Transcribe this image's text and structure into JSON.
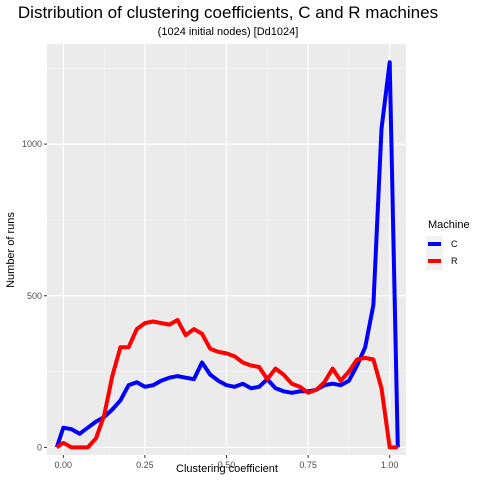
{
  "chart_data": {
    "type": "line",
    "title": "Distribution of clustering coefficients, C and R machines",
    "subtitle": "(1024 initial nodes) [Dd1024]",
    "xlabel": "Clustering coefficient",
    "ylabel": "Number of runs",
    "xlim": [
      -0.05,
      1.05
    ],
    "ylim": [
      -25,
      1330
    ],
    "x_ticks": [
      0.0,
      0.25,
      0.5,
      0.75,
      1.0
    ],
    "x_tick_labels": [
      "0.00",
      "0.25",
      "0.50",
      "0.75",
      "1.00"
    ],
    "y_ticks": [
      0,
      500,
      1000
    ],
    "y_tick_labels": [
      "0",
      "500",
      "1000"
    ],
    "grid": true,
    "background": "#ebebeb",
    "legend": {
      "title": "Machine",
      "position": "right",
      "entries": [
        {
          "label": "C",
          "color": "#0000ff"
        },
        {
          "label": "R",
          "color": "#ff0000"
        }
      ]
    },
    "series": [
      {
        "name": "C",
        "color": "#0000ff",
        "x": [
          -0.02,
          0.0,
          0.025,
          0.05,
          0.075,
          0.1,
          0.125,
          0.15,
          0.175,
          0.2,
          0.225,
          0.25,
          0.275,
          0.3,
          0.325,
          0.35,
          0.375,
          0.4,
          0.425,
          0.45,
          0.475,
          0.5,
          0.525,
          0.55,
          0.575,
          0.6,
          0.625,
          0.65,
          0.675,
          0.7,
          0.725,
          0.75,
          0.775,
          0.8,
          0.825,
          0.85,
          0.875,
          0.9,
          0.925,
          0.95,
          0.975,
          1.0,
          1.025
        ],
        "y": [
          0,
          65,
          60,
          45,
          65,
          85,
          100,
          125,
          155,
          205,
          215,
          200,
          205,
          220,
          230,
          235,
          230,
          225,
          280,
          240,
          220,
          205,
          200,
          210,
          195,
          200,
          225,
          195,
          185,
          180,
          185,
          185,
          190,
          205,
          210,
          205,
          220,
          270,
          330,
          470,
          1050,
          1270,
          0
        ]
      },
      {
        "name": "R",
        "color": "#ff0000",
        "x": [
          -0.02,
          0.0,
          0.025,
          0.05,
          0.075,
          0.1,
          0.125,
          0.15,
          0.175,
          0.2,
          0.225,
          0.25,
          0.275,
          0.3,
          0.325,
          0.35,
          0.375,
          0.4,
          0.425,
          0.45,
          0.475,
          0.5,
          0.525,
          0.55,
          0.575,
          0.6,
          0.625,
          0.65,
          0.675,
          0.7,
          0.725,
          0.75,
          0.775,
          0.8,
          0.825,
          0.85,
          0.875,
          0.9,
          0.925,
          0.95,
          0.975,
          1.0,
          1.025
        ],
        "y": [
          0,
          15,
          0,
          0,
          0,
          30,
          105,
          235,
          330,
          330,
          390,
          410,
          415,
          410,
          405,
          420,
          370,
          390,
          375,
          325,
          315,
          310,
          300,
          280,
          270,
          265,
          225,
          260,
          240,
          210,
          200,
          180,
          190,
          215,
          260,
          220,
          250,
          290,
          295,
          290,
          195,
          0,
          0
        ]
      }
    ]
  }
}
